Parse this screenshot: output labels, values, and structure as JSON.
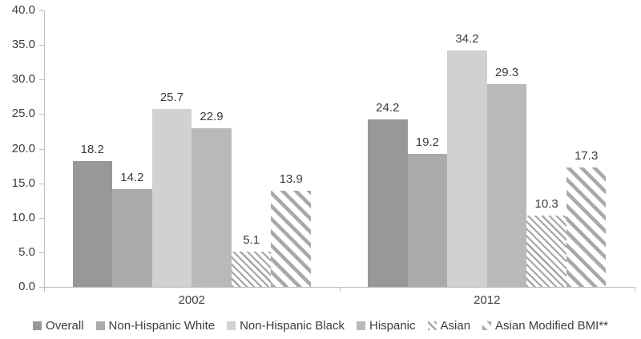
{
  "chart_data": {
    "type": "bar",
    "title": "",
    "xlabel": "",
    "ylabel": "",
    "categories": [
      "2002",
      "2012"
    ],
    "series": [
      {
        "name": "Overall",
        "values": [
          18.2,
          24.2
        ],
        "color": "#98989a",
        "pattern": "solid"
      },
      {
        "name": "Non-Hispanic White",
        "values": [
          14.2,
          19.2
        ],
        "color": "#ababad",
        "pattern": "solid"
      },
      {
        "name": "Non-Hispanic Black",
        "values": [
          25.7,
          34.2
        ],
        "color": "#d1d1d3",
        "pattern": "solid"
      },
      {
        "name": "Hispanic",
        "values": [
          22.9,
          29.3
        ],
        "color": "#b9b9bb",
        "pattern": "solid"
      },
      {
        "name": "Asian",
        "values": [
          5.1,
          10.3
        ],
        "color": "#a5a5a7",
        "pattern": "hatch-fine"
      },
      {
        "name": "Asian Modified BMI**",
        "values": [
          13.9,
          17.3
        ],
        "color": "#a9a9ab",
        "pattern": "hatch-coarse"
      }
    ],
    "ylim": [
      0,
      40
    ],
    "ytick_step": 5,
    "ytick_labels": [
      "0.0",
      "5.0",
      "10.0",
      "15.0",
      "20.0",
      "25.0",
      "30.0",
      "35.0",
      "40.0"
    ],
    "value_labels": true,
    "value_label_format": "one-decimal",
    "grid": false,
    "legend_position": "bottom"
  },
  "colors": {
    "axis": "#bfbfbf",
    "text": "#3f3f3f",
    "background": "#ffffff"
  }
}
